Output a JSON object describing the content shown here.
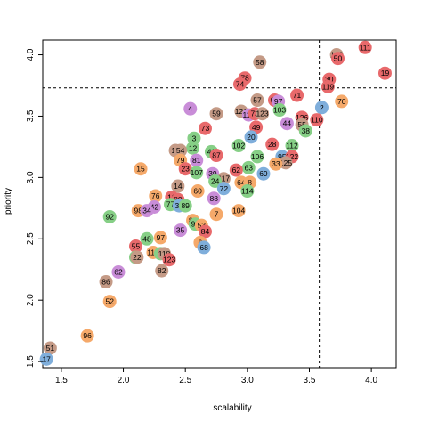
{
  "chart_data": {
    "type": "scatter",
    "title": "",
    "xlabel": "scalability",
    "ylabel": "priority",
    "xlim": [
      1.35,
      4.2
    ],
    "ylim": [
      1.45,
      4.12
    ],
    "x_ticks": [
      1.5,
      2.0,
      2.5,
      3.0,
      3.5,
      4.0
    ],
    "x_tick_labels": [
      "1.5",
      "2.0",
      "2.5",
      "3.0",
      "3.5",
      "4.0"
    ],
    "y_ticks": [
      1.5,
      2.0,
      2.5,
      3.0,
      3.5,
      4.0
    ],
    "y_tick_labels": [
      "1.5",
      "2.0",
      "2.5",
      "3.0",
      "3.5",
      "4.0"
    ],
    "grid": false,
    "reference_lines": {
      "vertical_x": 3.58,
      "horizontal_y": 3.73
    },
    "palette": {
      "red": "#E8696B",
      "orange": "#F5A96A",
      "green": "#86CF86",
      "blue": "#7FAEDB",
      "purple": "#C98DD8",
      "brown": "#C49A86"
    },
    "points": [
      {
        "label": "111",
        "x": 3.95,
        "y": 4.06,
        "color": "red"
      },
      {
        "label": "19",
        "x": 4.11,
        "y": 3.85,
        "color": "red"
      },
      {
        "label": "160",
        "x": 3.72,
        "y": 4.0,
        "color": "brown"
      },
      {
        "label": "50",
        "x": 3.73,
        "y": 3.97,
        "color": "red"
      },
      {
        "label": "30",
        "x": 3.66,
        "y": 3.8,
        "color": "red"
      },
      {
        "label": "119",
        "x": 3.65,
        "y": 3.74,
        "color": "red"
      },
      {
        "label": "70",
        "x": 3.76,
        "y": 3.62,
        "color": "orange"
      },
      {
        "label": "2",
        "x": 3.6,
        "y": 3.57,
        "color": "blue"
      },
      {
        "label": "110",
        "x": 3.56,
        "y": 3.47,
        "color": "red"
      },
      {
        "label": "58",
        "x": 3.1,
        "y": 3.94,
        "color": "brown"
      },
      {
        "label": "78",
        "x": 2.98,
        "y": 3.81,
        "color": "red"
      },
      {
        "label": "74",
        "x": 2.94,
        "y": 3.76,
        "color": "red"
      },
      {
        "label": "71",
        "x": 3.4,
        "y": 3.67,
        "color": "red"
      },
      {
        "label": "57",
        "x": 3.08,
        "y": 3.63,
        "color": "brown"
      },
      {
        "label": "99",
        "x": 3.22,
        "y": 3.63,
        "color": "red"
      },
      {
        "label": "97",
        "x": 3.25,
        "y": 3.62,
        "color": "purple"
      },
      {
        "label": "121",
        "x": 2.95,
        "y": 3.54,
        "color": "brown"
      },
      {
        "label": "113",
        "x": 3.01,
        "y": 3.51,
        "color": "purple"
      },
      {
        "label": "73",
        "x": 3.06,
        "y": 3.52,
        "color": "red"
      },
      {
        "label": "103",
        "x": 3.26,
        "y": 3.55,
        "color": "green"
      },
      {
        "label": "123",
        "x": 3.12,
        "y": 3.52,
        "color": "brown"
      },
      {
        "label": "126",
        "x": 3.44,
        "y": 3.49,
        "color": "red"
      },
      {
        "label": "49",
        "x": 3.07,
        "y": 3.41,
        "color": "red"
      },
      {
        "label": "44",
        "x": 3.32,
        "y": 3.44,
        "color": "purple"
      },
      {
        "label": "55",
        "x": 3.44,
        "y": 3.43,
        "color": "brown"
      },
      {
        "label": "38",
        "x": 3.47,
        "y": 3.38,
        "color": "green"
      },
      {
        "label": "4",
        "x": 2.54,
        "y": 3.56,
        "color": "purple"
      },
      {
        "label": "59",
        "x": 2.75,
        "y": 3.52,
        "color": "brown"
      },
      {
        "label": "73",
        "x": 2.66,
        "y": 3.4,
        "color": "red"
      },
      {
        "label": "3",
        "x": 2.57,
        "y": 3.32,
        "color": "green"
      },
      {
        "label": "20",
        "x": 3.03,
        "y": 3.33,
        "color": "blue"
      },
      {
        "label": "12",
        "x": 2.56,
        "y": 3.24,
        "color": "green"
      },
      {
        "label": "40",
        "x": 2.71,
        "y": 3.21,
        "color": "green"
      },
      {
        "label": "102",
        "x": 2.93,
        "y": 3.26,
        "color": "green"
      },
      {
        "label": "28",
        "x": 3.2,
        "y": 3.27,
        "color": "red"
      },
      {
        "label": "112",
        "x": 3.36,
        "y": 3.26,
        "color": "green"
      },
      {
        "label": "13",
        "x": 2.42,
        "y": 3.22,
        "color": "brown"
      },
      {
        "label": "54",
        "x": 2.46,
        "y": 3.22,
        "color": "brown"
      },
      {
        "label": "87",
        "x": 2.75,
        "y": 3.18,
        "color": "red"
      },
      {
        "label": "106",
        "x": 3.08,
        "y": 3.17,
        "color": "green"
      },
      {
        "label": "95",
        "x": 3.28,
        "y": 3.17,
        "color": "blue"
      },
      {
        "label": "122",
        "x": 3.36,
        "y": 3.17,
        "color": "red"
      },
      {
        "label": "79",
        "x": 2.46,
        "y": 3.14,
        "color": "orange"
      },
      {
        "label": "81",
        "x": 2.59,
        "y": 3.14,
        "color": "purple"
      },
      {
        "label": "125",
        "x": 3.31,
        "y": 3.12,
        "color": "brown"
      },
      {
        "label": "33",
        "x": 3.23,
        "y": 3.11,
        "color": "orange"
      },
      {
        "label": "15",
        "x": 2.14,
        "y": 3.07,
        "color": "orange"
      },
      {
        "label": "23",
        "x": 2.5,
        "y": 3.07,
        "color": "red"
      },
      {
        "label": "63",
        "x": 3.01,
        "y": 3.08,
        "color": "green"
      },
      {
        "label": "62",
        "x": 2.91,
        "y": 3.06,
        "color": "red"
      },
      {
        "label": "107",
        "x": 2.59,
        "y": 3.04,
        "color": "green"
      },
      {
        "label": "39",
        "x": 2.72,
        "y": 3.03,
        "color": "purple"
      },
      {
        "label": "117",
        "x": 2.81,
        "y": 2.99,
        "color": "brown"
      },
      {
        "label": "69",
        "x": 3.13,
        "y": 3.03,
        "color": "blue"
      },
      {
        "label": "64",
        "x": 2.95,
        "y": 2.96,
        "color": "orange"
      },
      {
        "label": "8",
        "x": 3.02,
        "y": 2.96,
        "color": "orange"
      },
      {
        "label": "24",
        "x": 2.74,
        "y": 2.97,
        "color": "green"
      },
      {
        "label": "14",
        "x": 2.44,
        "y": 2.93,
        "color": "brown"
      },
      {
        "label": "72",
        "x": 2.81,
        "y": 2.91,
        "color": "blue"
      },
      {
        "label": "114",
        "x": 3.0,
        "y": 2.89,
        "color": "green"
      },
      {
        "label": "60",
        "x": 2.6,
        "y": 2.89,
        "color": "orange"
      },
      {
        "label": "76",
        "x": 2.26,
        "y": 2.85,
        "color": "orange"
      },
      {
        "label": "10",
        "x": 2.39,
        "y": 2.84,
        "color": "red"
      },
      {
        "label": "80",
        "x": 2.44,
        "y": 2.82,
        "color": "red"
      },
      {
        "label": "88",
        "x": 2.73,
        "y": 2.83,
        "color": "purple"
      },
      {
        "label": "77",
        "x": 2.38,
        "y": 2.78,
        "color": "green"
      },
      {
        "label": "36",
        "x": 2.45,
        "y": 2.77,
        "color": "blue"
      },
      {
        "label": "89",
        "x": 2.5,
        "y": 2.77,
        "color": "green"
      },
      {
        "label": "42",
        "x": 2.25,
        "y": 2.76,
        "color": "purple"
      },
      {
        "label": "98",
        "x": 2.12,
        "y": 2.73,
        "color": "orange"
      },
      {
        "label": "34",
        "x": 2.19,
        "y": 2.73,
        "color": "purple"
      },
      {
        "label": "7",
        "x": 2.75,
        "y": 2.7,
        "color": "orange"
      },
      {
        "label": "104",
        "x": 2.93,
        "y": 2.73,
        "color": "orange"
      },
      {
        "label": "92",
        "x": 1.89,
        "y": 2.68,
        "color": "green"
      },
      {
        "label": "85",
        "x": 2.56,
        "y": 2.65,
        "color": "orange"
      },
      {
        "label": "91",
        "x": 2.58,
        "y": 2.62,
        "color": "green"
      },
      {
        "label": "53",
        "x": 2.63,
        "y": 2.61,
        "color": "orange"
      },
      {
        "label": "84",
        "x": 2.66,
        "y": 2.56,
        "color": "red"
      },
      {
        "label": "35",
        "x": 2.46,
        "y": 2.57,
        "color": "purple"
      },
      {
        "label": "48",
        "x": 2.19,
        "y": 2.5,
        "color": "green"
      },
      {
        "label": "97",
        "x": 2.3,
        "y": 2.51,
        "color": "orange"
      },
      {
        "label": "6",
        "x": 2.62,
        "y": 2.47,
        "color": "orange"
      },
      {
        "label": "68",
        "x": 2.65,
        "y": 2.43,
        "color": "blue"
      },
      {
        "label": "55",
        "x": 2.1,
        "y": 2.44,
        "color": "red"
      },
      {
        "label": "115",
        "x": 2.24,
        "y": 2.39,
        "color": "orange"
      },
      {
        "label": "1",
        "x": 2.3,
        "y": 2.38,
        "color": "green"
      },
      {
        "label": "118",
        "x": 2.33,
        "y": 2.38,
        "color": "brown"
      },
      {
        "label": "123",
        "x": 2.37,
        "y": 2.33,
        "color": "red"
      },
      {
        "label": "29",
        "x": 2.1,
        "y": 2.35,
        "color": "green"
      },
      {
        "label": "22",
        "x": 2.11,
        "y": 2.35,
        "color": "brown"
      },
      {
        "label": "82",
        "x": 2.31,
        "y": 2.24,
        "color": "brown"
      },
      {
        "label": "62",
        "x": 1.96,
        "y": 2.23,
        "color": "purple"
      },
      {
        "label": "86",
        "x": 1.86,
        "y": 2.15,
        "color": "brown"
      },
      {
        "label": "52",
        "x": 1.89,
        "y": 1.99,
        "color": "orange"
      },
      {
        "label": "96",
        "x": 1.71,
        "y": 1.71,
        "color": "orange"
      },
      {
        "label": "51",
        "x": 1.41,
        "y": 1.61,
        "color": "brown"
      },
      {
        "label": "17",
        "x": 1.38,
        "y": 1.52,
        "color": "blue"
      }
    ]
  }
}
